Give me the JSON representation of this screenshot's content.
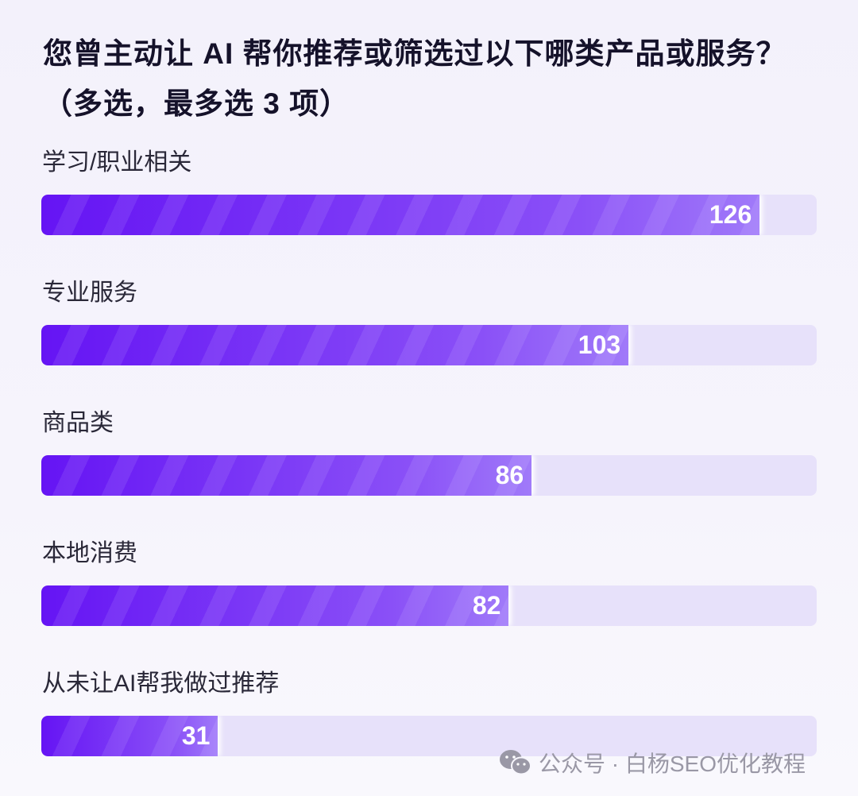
{
  "chart_data": {
    "type": "bar",
    "orientation": "horizontal",
    "title": "您曾主动让 AI 帮你推荐或筛选过以下哪类产品或服务？（多选，最多选 3 项）",
    "categories": [
      "学习/职业相关",
      "专业服务",
      "商品类",
      "本地消费",
      "从未让AI帮我做过推荐"
    ],
    "values": [
      126,
      103,
      86,
      82,
      31
    ],
    "xlim": [
      0,
      136
    ],
    "grid": false,
    "colors": {
      "bar": "#6514f4",
      "track": "#e7e1fa"
    }
  },
  "footer": {
    "icon": "wechat-icon",
    "text": "公众号 · 白杨SEO优化教程"
  }
}
